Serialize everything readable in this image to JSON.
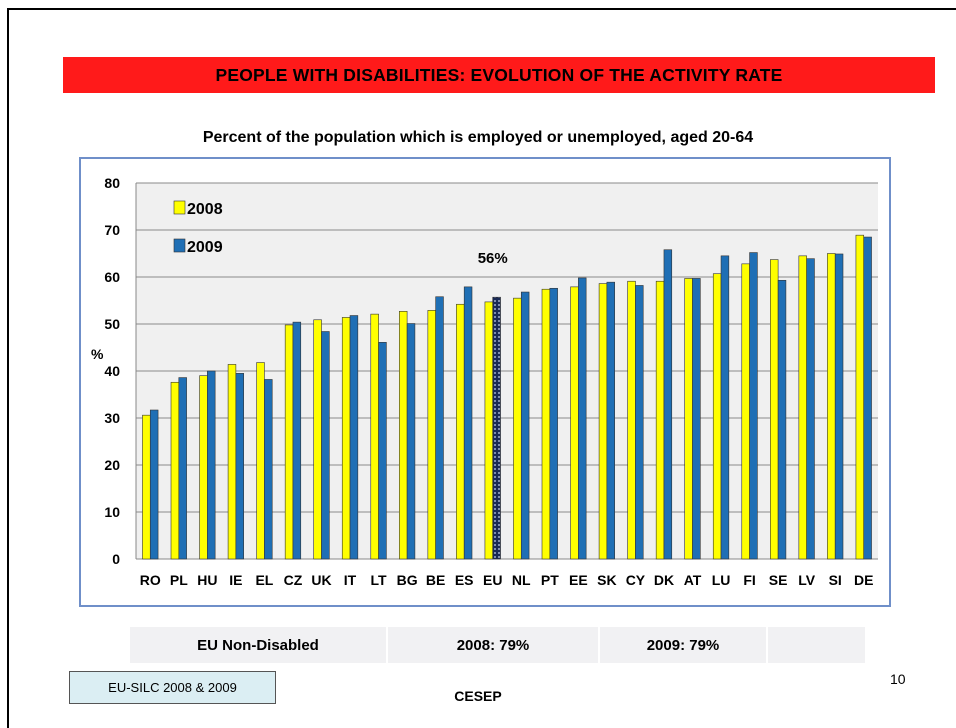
{
  "slide": {
    "title": "PEOPLE WITH DISABILITIES: EVOLUTION OF THE ACTIVITY RATE",
    "subtitle": "Percent of the population which is employed or unemployed,  aged 20-64",
    "page_number": "10",
    "source": "EU-SILC 2008 & 2009",
    "footer": "CESEP"
  },
  "non_disabled": {
    "label": "EU Non-Disabled",
    "v2008": "2008: 79%",
    "v2009": "2009: 79%"
  },
  "colors": {
    "series_2008": "#ffff00",
    "series_2009": "#1f6fb5",
    "plot_bg": "#f0f0f0",
    "title_bg": "#ff1a1a",
    "frame": "#6f8fc9"
  },
  "chart_data": {
    "type": "bar",
    "categories": [
      "RO",
      "PL",
      "HU",
      "IE",
      "EL",
      "CZ",
      "UK",
      "IT",
      "LT",
      "BG",
      "BE",
      "ES",
      "EU",
      "NL",
      "PT",
      "EE",
      "SK",
      "CY",
      "DK",
      "AT",
      "LU",
      "FI",
      "SE",
      "LV",
      "SI",
      "DE"
    ],
    "series": [
      {
        "name": "2008",
        "values": [
          30.6,
          37.6,
          39.0,
          41.4,
          41.8,
          49.8,
          50.9,
          51.4,
          52.1,
          52.7,
          52.9,
          54.2,
          54.7,
          55.5,
          57.4,
          57.9,
          58.6,
          59.1,
          59.1,
          59.7,
          60.7,
          62.8,
          63.7,
          64.5,
          65.0,
          68.9
        ]
      },
      {
        "name": "2009",
        "values": [
          31.7,
          38.6,
          40.0,
          39.5,
          38.2,
          50.4,
          48.4,
          51.8,
          46.1,
          50.1,
          55.8,
          57.9,
          55.7,
          56.8,
          57.6,
          59.8,
          58.9,
          58.2,
          65.8,
          59.7,
          64.5,
          65.2,
          59.3,
          63.9,
          64.9,
          68.5
        ]
      }
    ],
    "highlight_category": "EU",
    "annotation": "56%",
    "ylabel": "%",
    "ylim": [
      0,
      80
    ],
    "yticks": [
      0,
      10,
      20,
      30,
      40,
      50,
      60,
      70,
      80
    ],
    "grid": true,
    "legend": "top-left"
  }
}
